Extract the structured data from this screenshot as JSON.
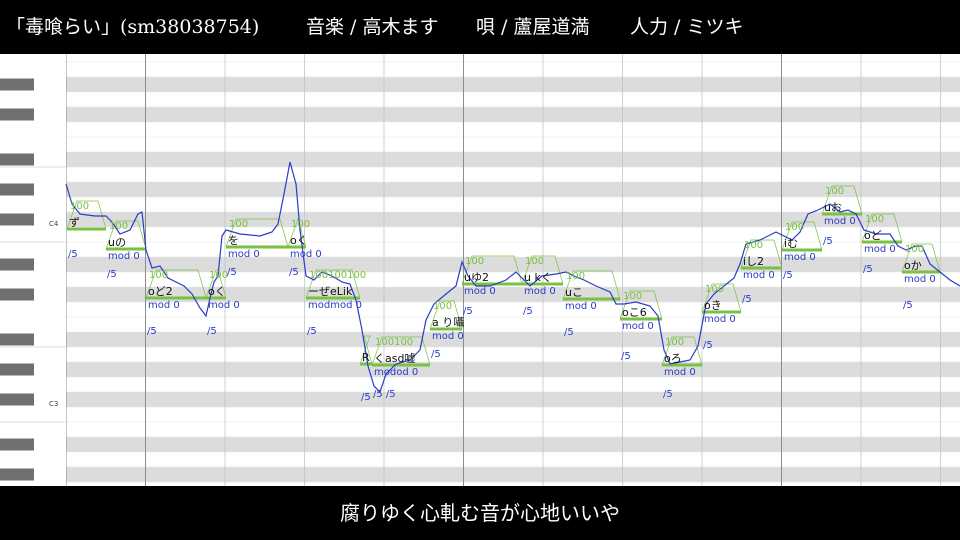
{
  "header": {
    "title": "「毒喰らい」(sm38038754)",
    "music": "音楽 / 高木ます",
    "vocal": "唄 / 蘆屋道満",
    "tuning": "人力 / ミツキ"
  },
  "piano_roll": {
    "octave_labels": [
      "C4",
      "C3"
    ],
    "notes": [
      {
        "lyric": "ず",
        "vel": "100",
        "mod": "",
        "len": "/5"
      },
      {
        "lyric": "uの",
        "vel": "100",
        "mod": "mod 0",
        "len": "/5"
      },
      {
        "lyric": "oど2",
        "vel": "100",
        "mod": "mod 0",
        "len": "/5"
      },
      {
        "lyric": "oく",
        "vel": "100",
        "mod": "mod 0",
        "len": "/5"
      },
      {
        "lyric": "を",
        "vel": "100",
        "mod": "mod 0",
        "len": "/5"
      },
      {
        "lyric": "oく",
        "vel": "100",
        "mod": "mod 0",
        "len": "/5"
      },
      {
        "lyric": "ーぜeLik",
        "vel": "100100100",
        "mod": "modmod 0",
        "len": "/5"
      },
      {
        "lyric": "R",
        "vel": "",
        "mod": "",
        "len": "/5"
      },
      {
        "lyric": "くasd嘘",
        "vel": "100100",
        "mod": "modod 0",
        "len": "/5 /5"
      },
      {
        "lyric": "a り囁",
        "vel": "100",
        "mod": "mod 0",
        "len": "/5"
      },
      {
        "lyric": "uゆ2",
        "vel": "100",
        "mod": "mod 0",
        "len": "/5"
      },
      {
        "lyric": "u kく",
        "vel": "100",
        "mod": "mod 0",
        "len": "/5"
      },
      {
        "lyric": "uこ",
        "vel": "100",
        "mod": "mod 0",
        "len": "/5"
      },
      {
        "lyric": "oこ6",
        "vel": "100",
        "mod": "mod 0",
        "len": "/5"
      },
      {
        "lyric": "oろ",
        "vel": "100",
        "mod": "mod 0",
        "len": "/5"
      },
      {
        "lyric": "oき",
        "vel": "100",
        "mod": "mod 0",
        "len": "/5"
      },
      {
        "lyric": "iし2",
        "vel": "100",
        "mod": "mod 0",
        "len": "/5"
      },
      {
        "lyric": "iむ",
        "vel": "100",
        "mod": "mod 0",
        "len": "/5"
      },
      {
        "lyric": "uお",
        "vel": "100",
        "mod": "mod 0",
        "len": "/5"
      },
      {
        "lyric": "oど",
        "vel": "100",
        "mod": "mod 0",
        "len": "/5"
      },
      {
        "lyric": "oか",
        "vel": "100",
        "mod": "mod 0",
        "len": "/5"
      }
    ]
  },
  "subtitle": "腐りゆく心軋む音が心地いいや",
  "colors": {
    "background": "#000000",
    "grid_gray": "#dcdcdc",
    "note_green": "#7ac142",
    "pitch_blue": "#2a3cc8",
    "text": "#ffffff"
  }
}
